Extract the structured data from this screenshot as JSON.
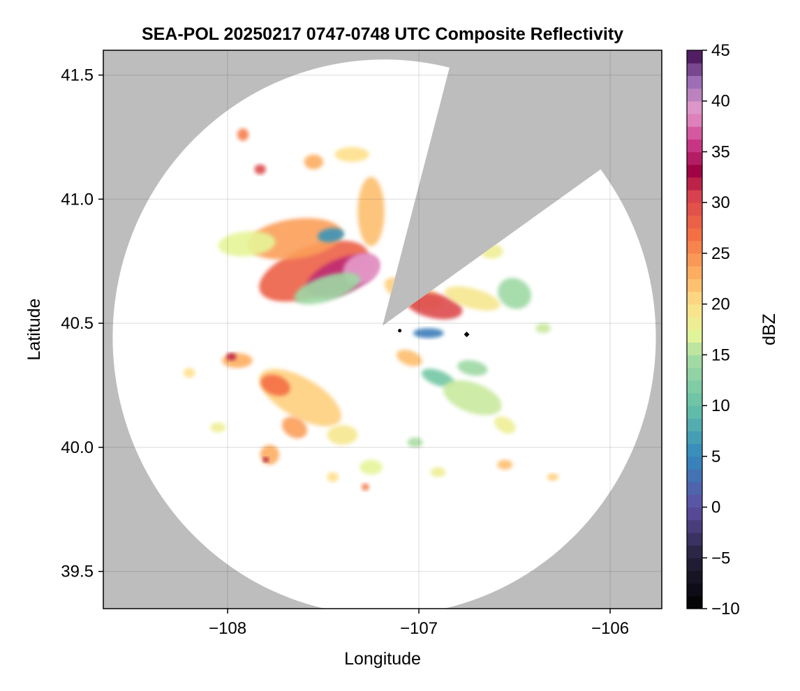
{
  "chart_data": {
    "type": "heatmap",
    "title": "SEA-POL 20250217 0747-0748 UTC Composite Reflectivity",
    "xlabel": "Longitude",
    "ylabel": "Latitude",
    "xlim": [
      -108.65,
      -105.73
    ],
    "ylim": [
      39.35,
      41.6
    ],
    "xticks": [
      -108,
      -107,
      -106
    ],
    "xtick_labels": [
      "−108",
      "−107",
      "−106"
    ],
    "yticks": [
      39.5,
      40.0,
      40.5,
      41.0,
      41.5
    ],
    "ytick_labels": [
      "39.5",
      "40.0",
      "40.5",
      "41.0",
      "41.5"
    ],
    "grid": true,
    "background_color": "#bdbdbd",
    "coverage_color": "#ffffff",
    "radar": {
      "center_lon": -107.19,
      "center_lat": 40.49,
      "max_range_lon": 1.42,
      "max_range_lat": 1.12,
      "blocked_sectors": [
        {
          "from_lon": -106.84,
          "from_lat": 41.53,
          "to_lon": -106.05,
          "to_lat": 41.12
        }
      ]
    },
    "markers": [
      {
        "lon": -107.1,
        "lat": 40.47,
        "shape": "circle"
      },
      {
        "lon": -106.75,
        "lat": 40.455,
        "shape": "diamond"
      }
    ],
    "echo_regions": [
      {
        "lon": -107.55,
        "lat": 40.71,
        "rx": 0.3,
        "ry": 0.1,
        "rot": 20,
        "dbz": 28
      },
      {
        "lon": -107.4,
        "lat": 40.69,
        "rx": 0.2,
        "ry": 0.07,
        "rot": 22,
        "dbz": 35
      },
      {
        "lon": -107.3,
        "lat": 40.72,
        "rx": 0.1,
        "ry": 0.06,
        "rot": 25,
        "dbz": 39
      },
      {
        "lon": -107.65,
        "lat": 40.84,
        "rx": 0.25,
        "ry": 0.08,
        "rot": 8,
        "dbz": 24
      },
      {
        "lon": -107.9,
        "lat": 40.82,
        "rx": 0.15,
        "ry": 0.05,
        "rot": 5,
        "dbz": 17
      },
      {
        "lon": -107.46,
        "lat": 40.855,
        "rx": 0.07,
        "ry": 0.028,
        "rot": 8,
        "dbz": 6
      },
      {
        "lon": -107.48,
        "lat": 40.64,
        "rx": 0.18,
        "ry": 0.05,
        "rot": 18,
        "dbz": 14
      },
      {
        "lon": -107.25,
        "lat": 40.95,
        "rx": 0.07,
        "ry": 0.14,
        "rot": 0,
        "dbz": 22
      },
      {
        "lon": -107.35,
        "lat": 41.18,
        "rx": 0.09,
        "ry": 0.03,
        "rot": 0,
        "dbz": 20
      },
      {
        "lon": -107.55,
        "lat": 41.15,
        "rx": 0.05,
        "ry": 0.03,
        "rot": 0,
        "dbz": 23
      },
      {
        "lon": -107.92,
        "lat": 41.26,
        "rx": 0.03,
        "ry": 0.025,
        "rot": 0,
        "dbz": 26
      },
      {
        "lon": -107.83,
        "lat": 41.12,
        "rx": 0.03,
        "ry": 0.02,
        "rot": 0,
        "dbz": 30
      },
      {
        "lon": -107.03,
        "lat": 40.62,
        "rx": 0.16,
        "ry": 0.05,
        "rot": -22,
        "dbz": 21
      },
      {
        "lon": -106.92,
        "lat": 40.57,
        "rx": 0.15,
        "ry": 0.05,
        "rot": -12,
        "dbz": 30
      },
      {
        "lon": -106.72,
        "lat": 40.6,
        "rx": 0.15,
        "ry": 0.04,
        "rot": -15,
        "dbz": 19
      },
      {
        "lon": -106.5,
        "lat": 40.62,
        "rx": 0.09,
        "ry": 0.06,
        "rot": -30,
        "dbz": 14
      },
      {
        "lon": -106.62,
        "lat": 40.79,
        "rx": 0.06,
        "ry": 0.03,
        "rot": 0,
        "dbz": 18
      },
      {
        "lon": -106.95,
        "lat": 40.46,
        "rx": 0.08,
        "ry": 0.02,
        "rot": 0,
        "dbz": 4
      },
      {
        "lon": -107.05,
        "lat": 40.36,
        "rx": 0.07,
        "ry": 0.03,
        "rot": -20,
        "dbz": 22
      },
      {
        "lon": -106.9,
        "lat": 40.28,
        "rx": 0.09,
        "ry": 0.03,
        "rot": -20,
        "dbz": 11
      },
      {
        "lon": -106.72,
        "lat": 40.2,
        "rx": 0.16,
        "ry": 0.06,
        "rot": -20,
        "dbz": 16
      },
      {
        "lon": -106.55,
        "lat": 40.09,
        "rx": 0.06,
        "ry": 0.03,
        "rot": -30,
        "dbz": 18
      },
      {
        "lon": -106.72,
        "lat": 40.32,
        "rx": 0.08,
        "ry": 0.03,
        "rot": -10,
        "dbz": 14
      },
      {
        "lon": -107.62,
        "lat": 40.2,
        "rx": 0.24,
        "ry": 0.08,
        "rot": -30,
        "dbz": 21
      },
      {
        "lon": -107.75,
        "lat": 40.25,
        "rx": 0.08,
        "ry": 0.04,
        "rot": -20,
        "dbz": 27
      },
      {
        "lon": -107.65,
        "lat": 40.08,
        "rx": 0.07,
        "ry": 0.04,
        "rot": -30,
        "dbz": 24
      },
      {
        "lon": -107.95,
        "lat": 40.35,
        "rx": 0.08,
        "ry": 0.03,
        "rot": 0,
        "dbz": 23
      },
      {
        "lon": -107.98,
        "lat": 40.365,
        "rx": 0.025,
        "ry": 0.015,
        "rot": 0,
        "dbz": 32
      },
      {
        "lon": -107.78,
        "lat": 39.97,
        "rx": 0.05,
        "ry": 0.04,
        "rot": 0,
        "dbz": 23
      },
      {
        "lon": -107.8,
        "lat": 39.95,
        "rx": 0.015,
        "ry": 0.01,
        "rot": 0,
        "dbz": 33
      },
      {
        "lon": -107.4,
        "lat": 40.05,
        "rx": 0.08,
        "ry": 0.04,
        "rot": 0,
        "dbz": 19
      },
      {
        "lon": -107.25,
        "lat": 39.92,
        "rx": 0.06,
        "ry": 0.03,
        "rot": 0,
        "dbz": 17
      },
      {
        "lon": -107.45,
        "lat": 39.88,
        "rx": 0.03,
        "ry": 0.02,
        "rot": 0,
        "dbz": 20
      },
      {
        "lon": -107.28,
        "lat": 39.84,
        "rx": 0.02,
        "ry": 0.015,
        "rot": 0,
        "dbz": 26
      },
      {
        "lon": -106.55,
        "lat": 39.93,
        "rx": 0.04,
        "ry": 0.02,
        "rot": 0,
        "dbz": 22
      },
      {
        "lon": -106.3,
        "lat": 39.88,
        "rx": 0.03,
        "ry": 0.015,
        "rot": 0,
        "dbz": 21
      },
      {
        "lon": -106.9,
        "lat": 39.9,
        "rx": 0.04,
        "ry": 0.02,
        "rot": 0,
        "dbz": 18
      },
      {
        "lon": -108.05,
        "lat": 40.08,
        "rx": 0.04,
        "ry": 0.02,
        "rot": 0,
        "dbz": 18
      },
      {
        "lon": -108.2,
        "lat": 40.3,
        "rx": 0.03,
        "ry": 0.02,
        "rot": 0,
        "dbz": 20
      },
      {
        "lon": -107.02,
        "lat": 40.02,
        "rx": 0.04,
        "ry": 0.02,
        "rot": 0,
        "dbz": 15
      },
      {
        "lon": -106.35,
        "lat": 40.48,
        "rx": 0.04,
        "ry": 0.02,
        "rot": 0,
        "dbz": 16
      }
    ],
    "colorbar": {
      "label": "dBZ",
      "range": [
        -10,
        45
      ],
      "ticks": [
        -10,
        -5,
        0,
        5,
        10,
        15,
        20,
        25,
        30,
        35,
        40,
        45
      ],
      "tick_labels": [
        "−10",
        "−5",
        "0",
        "5",
        "10",
        "15",
        "20",
        "25",
        "30",
        "35",
        "40",
        "45"
      ],
      "stops": [
        {
          "v": -10,
          "c": "#000000"
        },
        {
          "v": -5,
          "c": "#25203a"
        },
        {
          "v": 0,
          "c": "#5e4fa2"
        },
        {
          "v": 5,
          "c": "#3288bd"
        },
        {
          "v": 10,
          "c": "#66c2a5"
        },
        {
          "v": 15,
          "c": "#abdda4"
        },
        {
          "v": 17,
          "c": "#e6f598"
        },
        {
          "v": 20,
          "c": "#fee08b"
        },
        {
          "v": 23,
          "c": "#fdae61"
        },
        {
          "v": 27,
          "c": "#f46d43"
        },
        {
          "v": 31,
          "c": "#d53e4f"
        },
        {
          "v": 33,
          "c": "#9e0142"
        },
        {
          "v": 36,
          "c": "#ce3d8c"
        },
        {
          "v": 39,
          "c": "#e59ccb"
        },
        {
          "v": 42,
          "c": "#9a6cb5"
        },
        {
          "v": 45,
          "c": "#3f0a4d"
        }
      ]
    }
  }
}
